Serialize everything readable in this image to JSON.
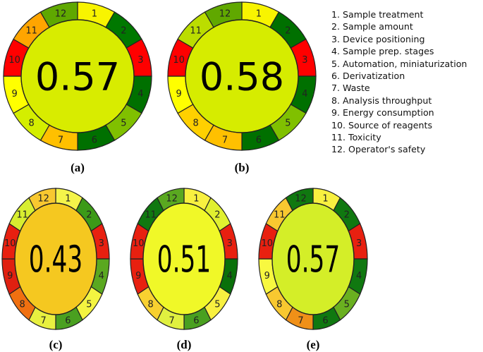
{
  "legend": [
    "1. Sample treatment",
    "2. Sample amount",
    "3. Device positioning",
    "4. Sample prep. stages",
    "5. Automation, miniaturization",
    "6. Derivatization",
    "7. Waste",
    "8. Analysis throughput",
    "9. Energy consumption",
    "10. Source of reagents",
    "11. Toxicity",
    "12. Operator's safety"
  ],
  "segment_labels": [
    "1",
    "2",
    "3",
    "4",
    "5",
    "6",
    "7",
    "8",
    "9",
    "10",
    "11",
    "12"
  ],
  "diagrams": [
    {
      "caption": "(a)",
      "score": "0.57",
      "center_color": "#d8ec00",
      "segment_colors": [
        "#f8f400",
        "#007800",
        "#ff0000",
        "#007000",
        "#80c000",
        "#007000",
        "#ffc000",
        "#d4ee00",
        "#ffff00",
        "#ff0000",
        "#ffa500",
        "#5fa800"
      ]
    },
    {
      "caption": "(b)",
      "score": "0.58",
      "center_color": "#d6ec00",
      "segment_colors": [
        "#f8f400",
        "#007000",
        "#ff0000",
        "#007000",
        "#80c000",
        "#007000",
        "#ffc000",
        "#ffd000",
        "#ffff00",
        "#ff0000",
        "#bbdd00",
        "#60a800"
      ]
    },
    {
      "caption": "(c)",
      "score": "0.43",
      "center_color": "#f5c820",
      "segment_colors": [
        "#f4f44a",
        "#3c9a18",
        "#e82010",
        "#5aa820",
        "#f4f440",
        "#4aa020",
        "#e8f040",
        "#f07010",
        "#e02010",
        "#e82010",
        "#d8ee30",
        "#f8c830"
      ]
    },
    {
      "caption": "(d)",
      "score": "0.51",
      "center_color": "#f0f828",
      "segment_colors": [
        "#f8f040",
        "#e0f030",
        "#e82010",
        "#0a700a",
        "#f8f040",
        "#4aa020",
        "#e0f040",
        "#f8d030",
        "#e82010",
        "#e82010",
        "#107810",
        "#5aa820"
      ]
    },
    {
      "caption": "(e)",
      "score": "0.57",
      "center_color": "#d4ee28",
      "segment_colors": [
        "#f8f040",
        "#107810",
        "#e82010",
        "#107810",
        "#6ab020",
        "#107810",
        "#f09018",
        "#f8c830",
        "#f8f840",
        "#e82010",
        "#f8c830",
        "#107810"
      ]
    }
  ]
}
